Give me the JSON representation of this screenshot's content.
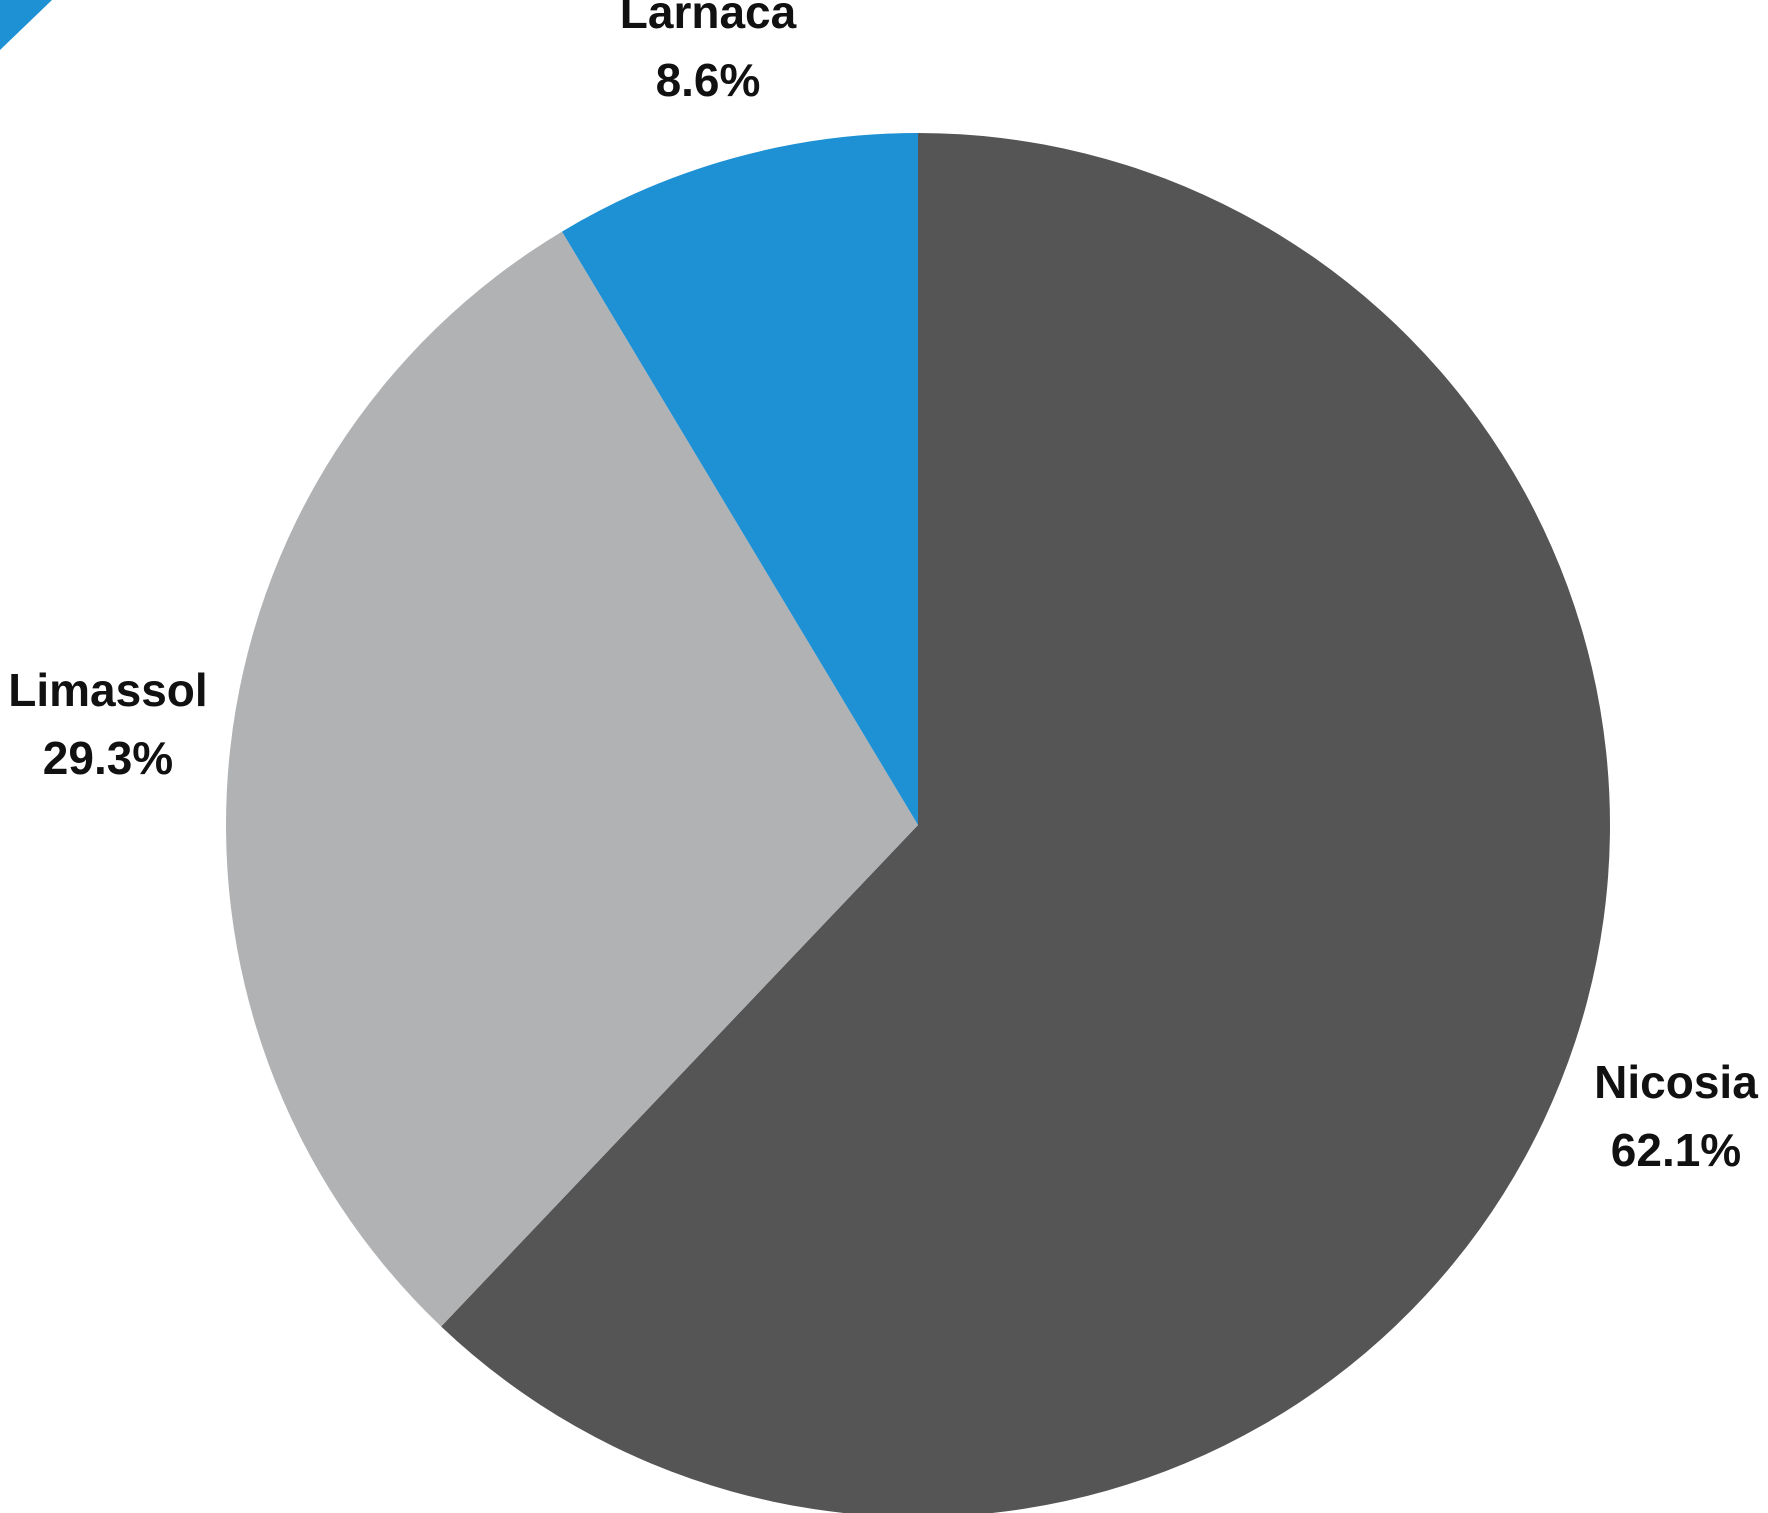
{
  "chart_data": {
    "type": "pie",
    "start": "12 o'clock",
    "direction": "clockwise",
    "slices": [
      {
        "label": "Nicosia",
        "value": 62.1,
        "value_label": "62.1%",
        "color": "#555555"
      },
      {
        "label": "Limassol",
        "value": 29.3,
        "value_label": "29.3%",
        "color": "#b1b2b4"
      },
      {
        "label": "Larnaca",
        "value": 8.6,
        "value_label": "8.6%",
        "color": "#1e90d4"
      }
    ],
    "corner_mark_color": "#1e90d4"
  }
}
